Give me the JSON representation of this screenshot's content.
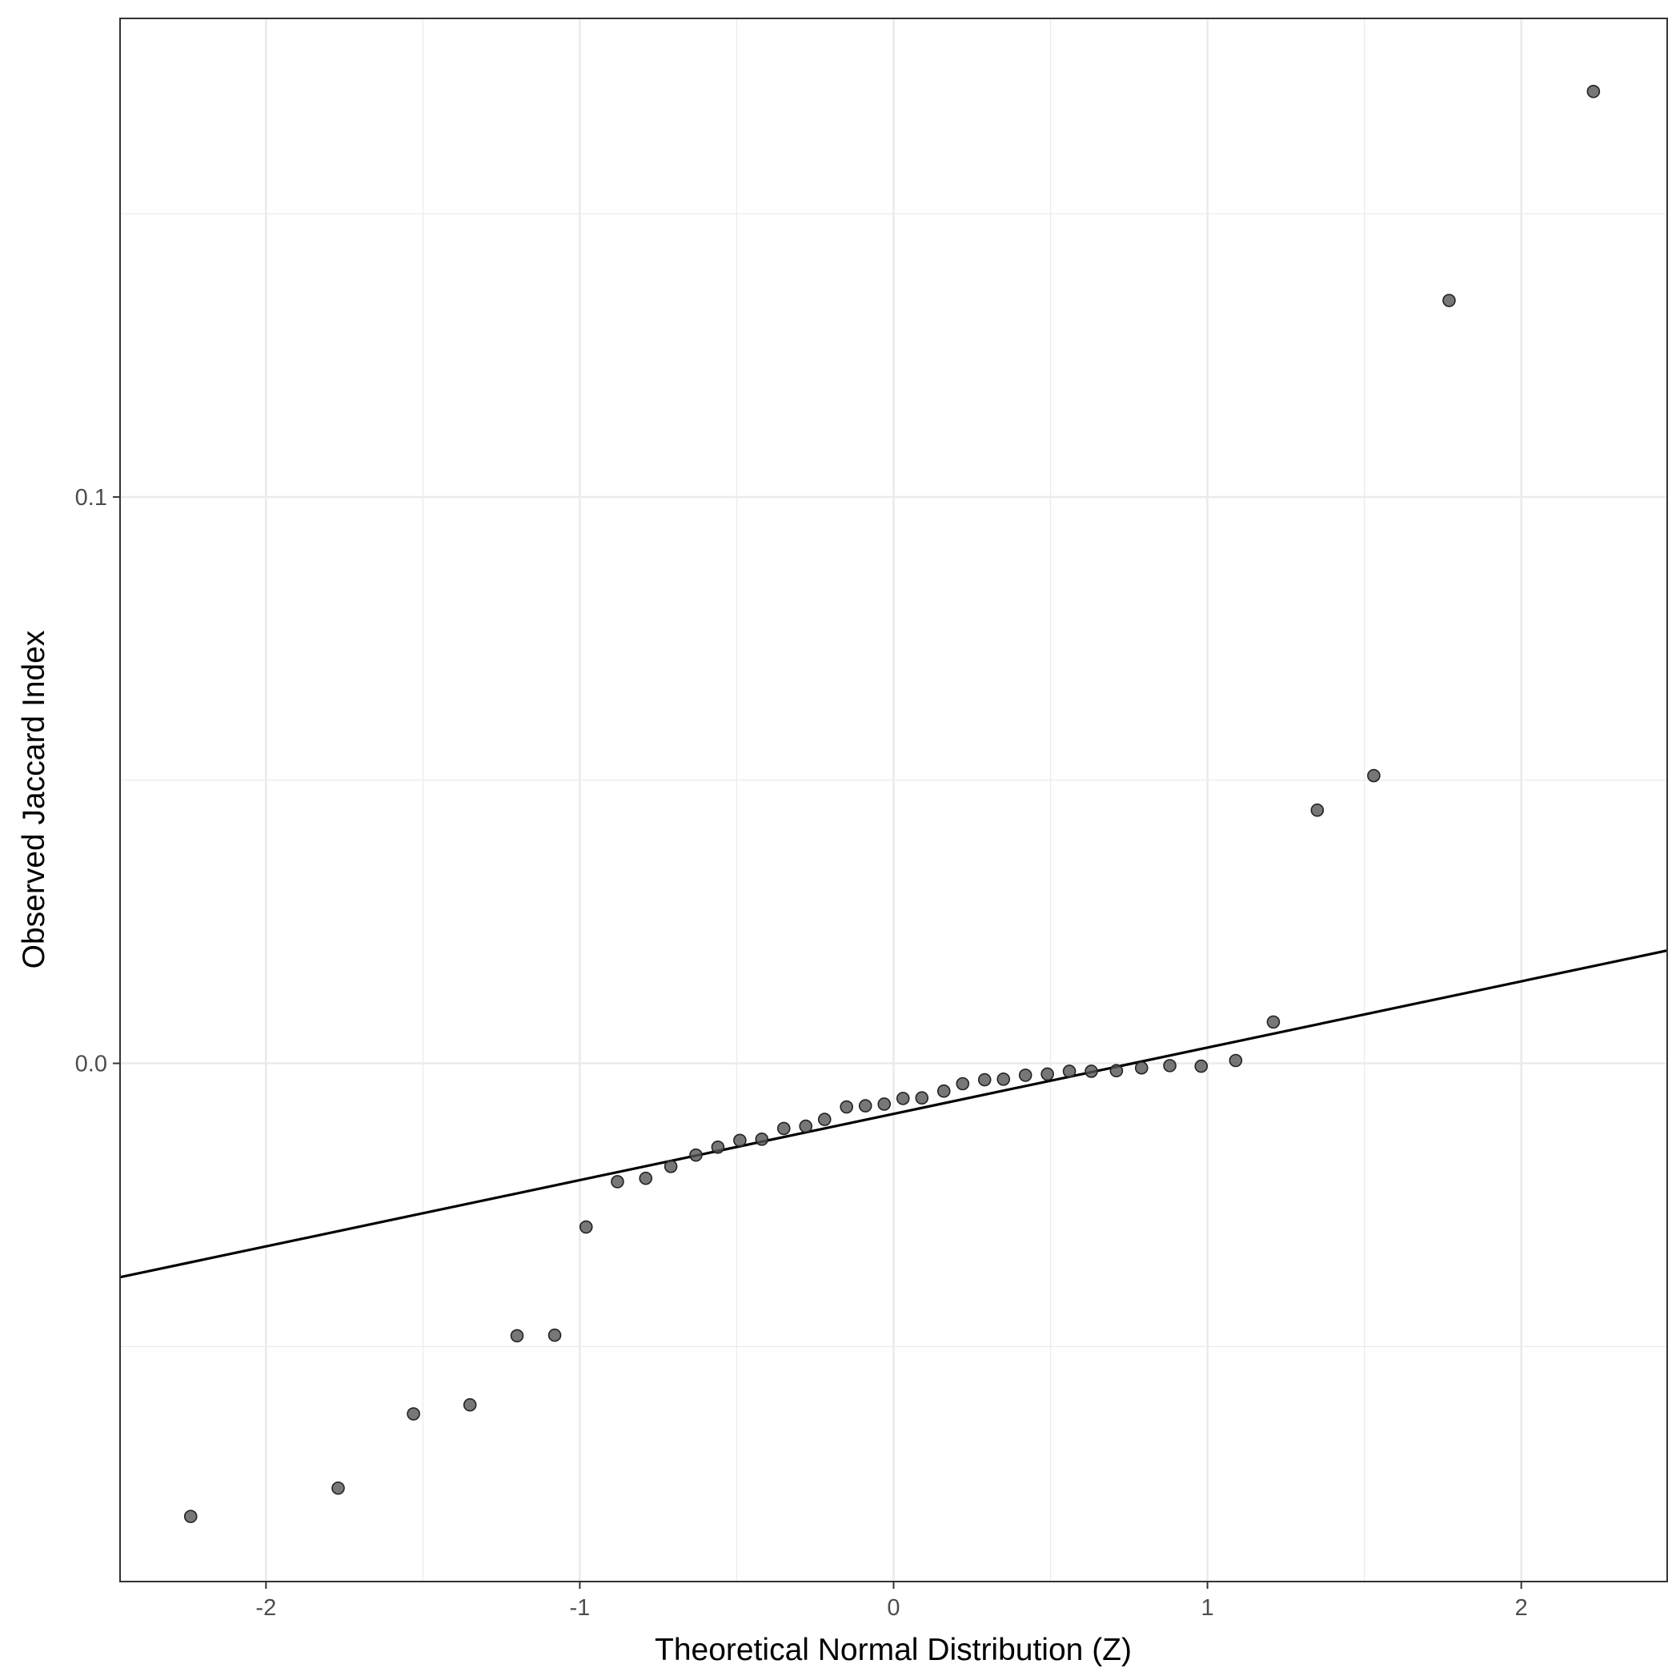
{
  "chart_data": {
    "type": "scatter",
    "title": "",
    "xlabel": "Theoretical Normal Distribution (Z)",
    "ylabel": "Observed Jaccard Index",
    "xlim": [
      -2.465,
      2.465
    ],
    "ylim": [
      -0.0915,
      0.1845
    ],
    "x_ticks": [
      -2,
      -1,
      0,
      1,
      2
    ],
    "x_tick_labels": [
      "-2",
      "-1",
      "0",
      "1",
      "2"
    ],
    "y_ticks": [
      0.0,
      0.1
    ],
    "y_tick_labels": [
      "0.0",
      "0.1"
    ],
    "x_minor_grid": [
      -1.5,
      -0.5,
      0.5,
      1.5
    ],
    "y_minor_grid": [
      -0.05,
      0.05,
      0.15
    ],
    "grid": true,
    "point_color": "#555555",
    "line_color": "#000000",
    "reference_line": {
      "intercept": -0.00892,
      "slope": 0.0117
    },
    "points": [
      {
        "x": -2.24,
        "y": -0.08
      },
      {
        "x": -1.77,
        "y": -0.075
      },
      {
        "x": -1.53,
        "y": -0.0619
      },
      {
        "x": -1.35,
        "y": -0.0603
      },
      {
        "x": -1.2,
        "y": -0.0481
      },
      {
        "x": -1.08,
        "y": -0.048
      },
      {
        "x": -0.98,
        "y": -0.0289
      },
      {
        "x": -0.88,
        "y": -0.0209
      },
      {
        "x": -0.79,
        "y": -0.0203
      },
      {
        "x": -0.71,
        "y": -0.0182
      },
      {
        "x": -0.63,
        "y": -0.0162
      },
      {
        "x": -0.56,
        "y": -0.0148
      },
      {
        "x": -0.49,
        "y": -0.0136
      },
      {
        "x": -0.42,
        "y": -0.0134
      },
      {
        "x": -0.35,
        "y": -0.0115
      },
      {
        "x": -0.28,
        "y": -0.0111
      },
      {
        "x": -0.22,
        "y": -0.0099
      },
      {
        "x": -0.15,
        "y": -0.0077
      },
      {
        "x": -0.09,
        "y": -0.0075
      },
      {
        "x": -0.03,
        "y": -0.0072
      },
      {
        "x": 0.03,
        "y": -0.0062
      },
      {
        "x": 0.09,
        "y": -0.0061
      },
      {
        "x": 0.16,
        "y": -0.0049
      },
      {
        "x": 0.22,
        "y": -0.0036
      },
      {
        "x": 0.29,
        "y": -0.0029
      },
      {
        "x": 0.35,
        "y": -0.0028
      },
      {
        "x": 0.42,
        "y": -0.0021
      },
      {
        "x": 0.49,
        "y": -0.0019
      },
      {
        "x": 0.56,
        "y": -0.0014
      },
      {
        "x": 0.63,
        "y": -0.0014
      },
      {
        "x": 0.71,
        "y": -0.0013
      },
      {
        "x": 0.79,
        "y": -0.0008
      },
      {
        "x": 0.88,
        "y": -0.0004
      },
      {
        "x": 0.98,
        "y": -0.0005
      },
      {
        "x": 1.09,
        "y": 0.0005
      },
      {
        "x": 1.21,
        "y": 0.0073
      },
      {
        "x": 1.35,
        "y": 0.0447
      },
      {
        "x": 1.53,
        "y": 0.0508
      },
      {
        "x": 1.77,
        "y": 0.1347
      },
      {
        "x": 2.23,
        "y": 0.1716
      }
    ]
  }
}
